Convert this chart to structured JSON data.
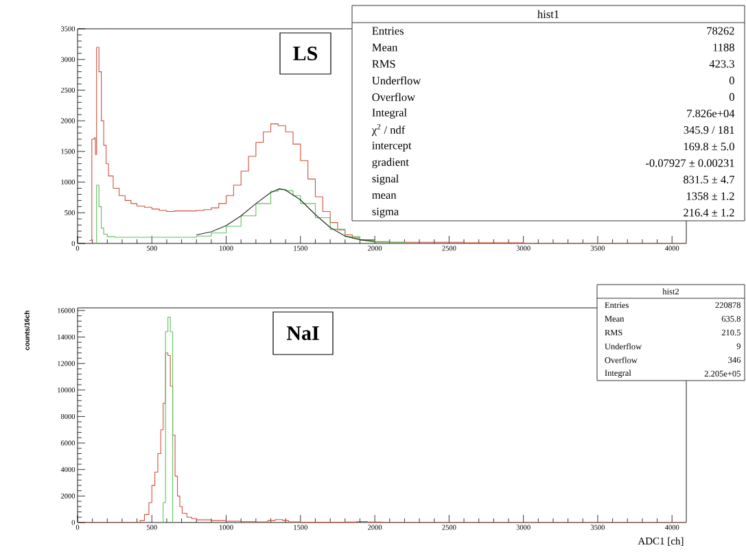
{
  "chart_data": [
    {
      "type": "step",
      "xlim": [
        0,
        4096
      ],
      "ylim": [
        0,
        3500
      ],
      "xticks": [
        0,
        500,
        1000,
        1500,
        2000,
        2500,
        3000,
        3500,
        4000
      ],
      "yticks": [
        0,
        500,
        1000,
        1500,
        2000,
        2500,
        3000,
        3500
      ],
      "series": [
        {
          "color": "#d0503a",
          "x": [
            80,
            96,
            112,
            120,
            128,
            144,
            160,
            176,
            192,
            208,
            240,
            280,
            320,
            360,
            400,
            450,
            500,
            550,
            600,
            650,
            700,
            750,
            800,
            850,
            900,
            950,
            1000,
            1050,
            1100,
            1150,
            1200,
            1250,
            1300,
            1350,
            1400,
            1450,
            1500,
            1550,
            1600,
            1650,
            1700,
            1750,
            1800,
            1850,
            1900,
            2000,
            2100,
            2300,
            2600,
            3000,
            3500,
            4080
          ],
          "values": [
            50,
            1700,
            1720,
            1450,
            3200,
            2800,
            2000,
            1600,
            1300,
            1100,
            900,
            780,
            700,
            650,
            610,
            590,
            560,
            540,
            520,
            530,
            530,
            530,
            540,
            550,
            580,
            650,
            780,
            950,
            1180,
            1420,
            1650,
            1820,
            1950,
            1920,
            1820,
            1620,
            1350,
            1050,
            760,
            520,
            340,
            220,
            140,
            90,
            60,
            30,
            20,
            20,
            10,
            0,
            0,
            0
          ]
        },
        {
          "color": "#5cbf5c",
          "x": [
            112,
            128,
            144,
            160,
            176,
            200,
            250,
            300,
            400,
            500,
            600,
            700,
            800,
            900,
            1000,
            1100,
            1200,
            1300,
            1350,
            1400,
            1450,
            1500,
            1600,
            1700,
            1800,
            1900,
            2000,
            2200
          ],
          "values": [
            0,
            950,
            600,
            250,
            150,
            110,
            100,
            100,
            100,
            100,
            100,
            100,
            120,
            170,
            280,
            450,
            650,
            850,
            880,
            860,
            780,
            650,
            420,
            230,
            110,
            50,
            20,
            0
          ]
        },
        {
          "type": "line",
          "color": "#1e2e1e",
          "x": [
            800,
            900,
            1000,
            1100,
            1200,
            1300,
            1358,
            1400,
            1500,
            1600,
            1700,
            1800,
            1900,
            2000
          ],
          "values": [
            140,
            190,
            290,
            450,
            650,
            830,
            890,
            870,
            710,
            470,
            260,
            120,
            60,
            30
          ]
        }
      ],
      "annotations": [
        "LS",
        "hist1",
        "Entries",
        "78262",
        "Mean",
        "1188",
        "RMS",
        "423.3",
        "Underflow",
        "0",
        "Overflow",
        "0",
        "Integral",
        "7.826e+04",
        "χ$^{2}$ / ndf",
        "345.9 / 181",
        "intercept",
        "169.8 ± 5.0",
        "gradient",
        "-0.07927 ± 0.00231",
        "signal",
        "831.5 ± 4.7",
        "mean",
        "1358 ± 1.2",
        "sigma",
        "216.4 ± 1.2"
      ]
    },
    {
      "type": "step",
      "xlim": [
        0,
        4096
      ],
      "ylim": [
        0,
        16200
      ],
      "xticks": [
        0,
        500,
        1000,
        1500,
        2000,
        2500,
        3000,
        3500,
        4000
      ],
      "yticks": [
        0,
        2000,
        4000,
        6000,
        8000,
        10000,
        12000,
        14000,
        16000
      ],
      "xlabel": "ADC1 [ch]",
      "ylabel": "counts/16ch",
      "series": [
        {
          "color": "#d0503a",
          "x": [
            0,
            380,
            420,
            450,
            480,
            500,
            520,
            540,
            560,
            576,
            592,
            608,
            624,
            640,
            656,
            672,
            688,
            704,
            736,
            768,
            800,
            900,
            1000,
            1100,
            1200,
            1280,
            1330,
            1380,
            1420,
            1500,
            1800,
            1880,
            1950,
            2050,
            4080
          ],
          "values": [
            0,
            0,
            150,
            600,
            1500,
            2800,
            3800,
            5200,
            7000,
            9000,
            12800,
            12600,
            10300,
            6600,
            3500,
            2000,
            1200,
            700,
            400,
            300,
            200,
            150,
            100,
            60,
            50,
            150,
            220,
            150,
            50,
            20,
            30,
            80,
            40,
            0,
            0
          ]
        },
        {
          "color": "#5cbf5c",
          "x": [
            560,
            576,
            592,
            608,
            624,
            640
          ],
          "values": [
            0,
            1500,
            14400,
            15500,
            14400,
            0
          ]
        }
      ],
      "annotations": [
        "NaI",
        "hist2",
        "Entries",
        "220878",
        "Mean",
        "635.8",
        "RMS",
        "210.5",
        "Underflow",
        "9",
        "Overflow",
        "346",
        "Integral",
        "2.205e+05"
      ]
    }
  ]
}
